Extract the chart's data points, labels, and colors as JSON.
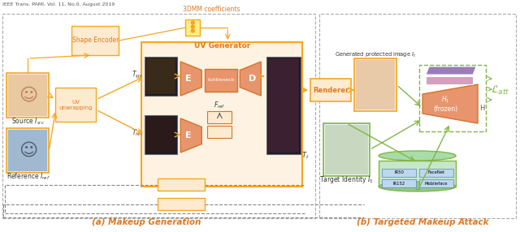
{
  "title_left": "(a) Makeup Generation",
  "title_right": "(b) Targeted Makeup Attack",
  "orange_main": "#F5A623",
  "orange_light": "#FDEBD0",
  "orange_mid": "#E8956D",
  "orange_dark": "#D4732A",
  "green_light": "#C8E6C9",
  "green_border": "#82B547",
  "purple_color": "#9B7BB8",
  "pink_color": "#D4A0C0",
  "blue_light": "#BDD7EE",
  "text_orange": "#E07820",
  "text_dark": "#333333",
  "bg_color": "#FFFFFF",
  "dashed_color": "#888888",
  "header": "IEEE Trans. PAMI, Vol. 11, No.0, August 2019"
}
